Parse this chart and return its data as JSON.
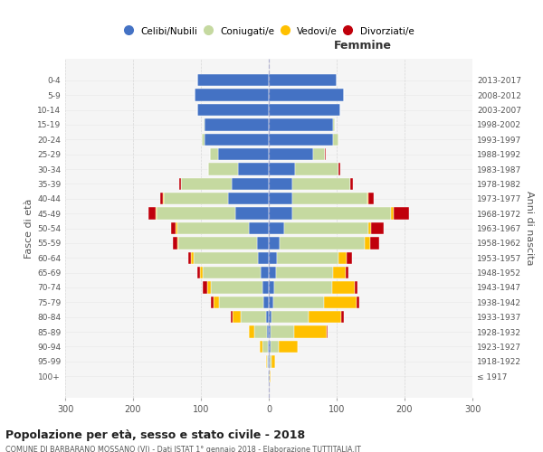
{
  "age_groups": [
    "100+",
    "95-99",
    "90-94",
    "85-89",
    "80-84",
    "75-79",
    "70-74",
    "65-69",
    "60-64",
    "55-59",
    "50-54",
    "45-49",
    "40-44",
    "35-39",
    "30-34",
    "25-29",
    "20-24",
    "15-19",
    "10-14",
    "5-9",
    "0-4"
  ],
  "birth_years": [
    "≤ 1917",
    "1918-1922",
    "1923-1927",
    "1928-1932",
    "1933-1937",
    "1938-1942",
    "1943-1947",
    "1948-1952",
    "1953-1957",
    "1958-1962",
    "1963-1967",
    "1968-1972",
    "1973-1977",
    "1978-1982",
    "1983-1987",
    "1988-1992",
    "1993-1997",
    "1998-2002",
    "2003-2007",
    "2008-2012",
    "2013-2017"
  ],
  "male_celibe": [
    1,
    1,
    2,
    3,
    4,
    8,
    10,
    12,
    16,
    18,
    30,
    50,
    60,
    55,
    45,
    75,
    95,
    95,
    105,
    110,
    105
  ],
  "male_coniugato": [
    0,
    2,
    7,
    18,
    38,
    65,
    75,
    85,
    95,
    115,
    105,
    115,
    95,
    75,
    45,
    12,
    4,
    1,
    0,
    0,
    0
  ],
  "male_vedovo": [
    0,
    1,
    4,
    8,
    12,
    8,
    6,
    4,
    4,
    2,
    2,
    2,
    1,
    0,
    0,
    0,
    0,
    0,
    0,
    0,
    0
  ],
  "male_divorziato": [
    0,
    0,
    0,
    0,
    2,
    4,
    7,
    4,
    4,
    7,
    7,
    10,
    4,
    2,
    0,
    0,
    0,
    0,
    0,
    0,
    0
  ],
  "female_nubile": [
    0,
    1,
    2,
    2,
    4,
    6,
    8,
    10,
    12,
    16,
    22,
    35,
    35,
    35,
    38,
    65,
    95,
    95,
    105,
    110,
    100
  ],
  "female_coniugata": [
    1,
    3,
    12,
    35,
    55,
    75,
    85,
    85,
    90,
    125,
    125,
    145,
    110,
    85,
    65,
    18,
    8,
    2,
    0,
    0,
    0
  ],
  "female_vedova": [
    1,
    5,
    28,
    48,
    48,
    48,
    33,
    18,
    13,
    8,
    4,
    4,
    2,
    0,
    0,
    0,
    0,
    0,
    0,
    0,
    0
  ],
  "female_divorziata": [
    0,
    0,
    0,
    2,
    3,
    4,
    4,
    4,
    8,
    13,
    18,
    22,
    8,
    4,
    2,
    1,
    0,
    0,
    0,
    0,
    0
  ],
  "colors_celibe": "#4472c4",
  "colors_coniugato": "#c5d9a0",
  "colors_vedovo": "#ffc000",
  "colors_divorziato": "#c0000b",
  "xlim": 300,
  "title": "Popolazione per età, sesso e stato civile - 2018",
  "subtitle": "COMUNE DI BARBARANO MOSSANO (VI) - Dati ISTAT 1° gennaio 2018 - Elaborazione TUTTITALIA.IT",
  "ylabel_left": "Fasce di età",
  "ylabel_right": "Anni di nascita",
  "xlabel_right": "Femmine",
  "legend_labels": [
    "Celibi/Nubili",
    "Coniugati/e",
    "Vedovi/e",
    "Divorziati/e"
  ],
  "bg_color": "#f5f5f5"
}
